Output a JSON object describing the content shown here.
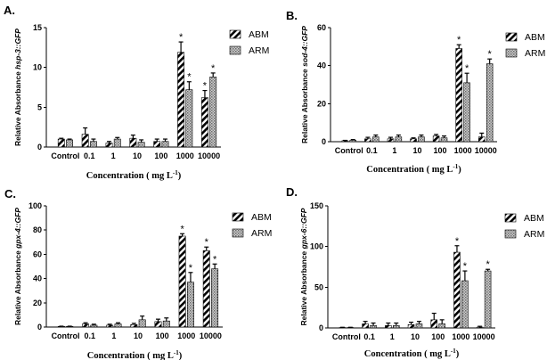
{
  "figure": {
    "xlabel": "Concentration ( mg L",
    "xlabel_sup": "-1",
    "xlabel_close": ")"
  },
  "chart_data": [
    {
      "panel": "A.",
      "type": "bar",
      "ylabel_prefix": "Relative Absorbance",
      "ylabel_gene": "hsp-3::GFP",
      "categories": [
        "Control",
        "0.1",
        "1",
        "10",
        "100",
        "1000",
        "10000"
      ],
      "ylim": [
        0,
        15
      ],
      "yticks": [
        0,
        5,
        10,
        15
      ],
      "series": [
        {
          "name": "ABM",
          "values": [
            1.0,
            1.6,
            0.5,
            1.1,
            0.7,
            11.9,
            6.2
          ],
          "errors": [
            0.1,
            0.8,
            0.2,
            0.4,
            0.3,
            1.3,
            0.9
          ],
          "significant": [
            false,
            false,
            false,
            false,
            false,
            true,
            true
          ]
        },
        {
          "name": "ARM",
          "values": [
            0.9,
            0.7,
            1.0,
            0.6,
            0.7,
            7.2,
            8.8
          ],
          "errors": [
            0.1,
            0.3,
            0.2,
            0.3,
            0.3,
            1.0,
            0.5
          ],
          "significant": [
            false,
            false,
            false,
            false,
            false,
            true,
            true
          ]
        }
      ]
    },
    {
      "panel": "B.",
      "type": "bar",
      "ylabel_prefix": "Relative Absorbance",
      "ylabel_gene": "sod-4::GFP",
      "categories": [
        "Control",
        "0.1",
        "1",
        "10",
        "100",
        "1000",
        "10000"
      ],
      "ylim": [
        0,
        60
      ],
      "yticks": [
        0,
        20,
        40,
        60
      ],
      "series": [
        {
          "name": "ABM",
          "values": [
            0.5,
            1.5,
            1.5,
            1.5,
            3.0,
            49,
            2.5
          ],
          "errors": [
            0.2,
            0.8,
            0.8,
            0.5,
            0.8,
            2.0,
            2.0
          ],
          "significant": [
            false,
            false,
            false,
            false,
            false,
            true,
            false
          ]
        },
        {
          "name": "ARM",
          "values": [
            0.8,
            2.5,
            2.5,
            2.5,
            2.0,
            31,
            41
          ],
          "errors": [
            0.3,
            1.0,
            1.0,
            1.0,
            1.0,
            5.0,
            2.5
          ],
          "significant": [
            false,
            false,
            false,
            false,
            false,
            true,
            true
          ]
        }
      ]
    },
    {
      "panel": "C.",
      "type": "bar",
      "ylabel_prefix": "Relative Absorbance",
      "ylabel_gene": "gpx-4::GFP",
      "categories": [
        "Control",
        "0.1",
        "1",
        "10",
        "100",
        "1000",
        "10000"
      ],
      "ylim": [
        0,
        100
      ],
      "yticks": [
        0,
        20,
        40,
        60,
        80,
        100
      ],
      "series": [
        {
          "name": "ABM",
          "values": [
            0.5,
            2.5,
            1.5,
            2.0,
            4.5,
            75,
            63
          ],
          "errors": [
            0.2,
            1.0,
            0.8,
            1.0,
            2.0,
            2.0,
            3.0
          ],
          "significant": [
            false,
            false,
            false,
            false,
            false,
            true,
            true
          ]
        },
        {
          "name": "ARM",
          "values": [
            0.5,
            1.5,
            2.5,
            6.0,
            5.0,
            37,
            48
          ],
          "errors": [
            0.2,
            0.8,
            1.0,
            3.0,
            2.5,
            8.0,
            4.0
          ],
          "significant": [
            false,
            false,
            false,
            false,
            false,
            true,
            true
          ]
        }
      ]
    },
    {
      "panel": "D.",
      "type": "bar",
      "ylabel_prefix": "Relative Absorbance",
      "ylabel_gene": "gpx-6::GFP",
      "categories": [
        "Control",
        "0.1",
        "1",
        "10",
        "100",
        "1000",
        "10000"
      ],
      "ylim": [
        0,
        150
      ],
      "yticks": [
        0,
        50,
        100,
        150
      ],
      "series": [
        {
          "name": "ABM",
          "values": [
            0.5,
            5.0,
            3.0,
            4.0,
            10.0,
            93,
            1.0
          ],
          "errors": [
            0.3,
            3.0,
            3.0,
            3.0,
            8.0,
            8.0,
            1.0
          ],
          "significant": [
            false,
            false,
            false,
            false,
            false,
            true,
            false
          ]
        },
        {
          "name": "ARM",
          "values": [
            0.5,
            3.0,
            3.0,
            5.0,
            5.0,
            58,
            70
          ],
          "errors": [
            0.3,
            3.0,
            3.0,
            3.0,
            5.0,
            12.0,
            2.0
          ],
          "significant": [
            false,
            false,
            false,
            false,
            false,
            true,
            true
          ]
        }
      ]
    }
  ]
}
